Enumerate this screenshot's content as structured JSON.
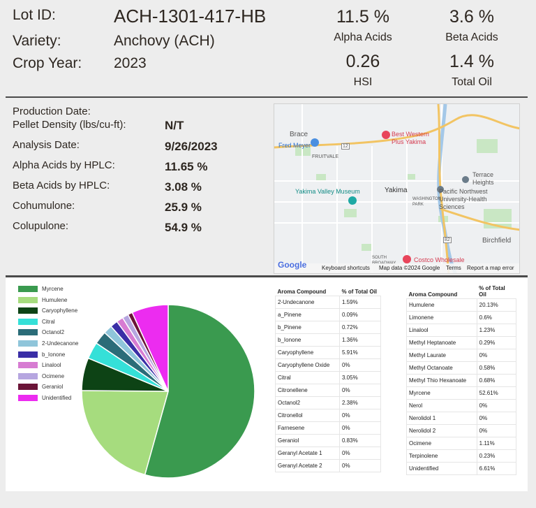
{
  "header": {
    "lot_label": "Lot ID:",
    "lot_value": "ACH-1301-417-HB",
    "variety_label": "Variety:",
    "variety_value": "Anchovy (ACH)",
    "crop_label": "Crop Year:",
    "crop_value": "2023",
    "alpha_value": "11.5 %",
    "alpha_label": "Alpha Acids",
    "beta_value": "3.6 %",
    "beta_label": "Beta Acids",
    "hsi_value": "0.26",
    "hsi_label": "HSI",
    "oil_value": "1.4 %",
    "oil_label": "Total Oil"
  },
  "production": {
    "production_date_label": "Production Date:",
    "pellet_density_label": "Pellet Density (lbs/cu-ft):",
    "pellet_density_value": "N/T",
    "analysis_date_label": "Analysis Date:",
    "analysis_date_value": "9/26/2023",
    "alpha_hplc_label": "Alpha Acids by HPLC:",
    "alpha_hplc_value": "11.65 %",
    "beta_hplc_label": "Beta Acids by HPLC:",
    "beta_hplc_value": "3.08 %",
    "cohumulone_label": "Cohumulone:",
    "cohumulone_value": "25.9 %",
    "colupulone_label": "Colupulone:",
    "colupulone_value": "54.9 %"
  },
  "map": {
    "labels": {
      "brace": "Brace",
      "fred_meyer": "Fred Meyer",
      "fruitvale": "FRUITVALE",
      "best_western": "Best Western Plus Yakima",
      "terrace": "Terrace Heights",
      "museum": "Yakima Valley Museum",
      "yakima": "Yakima",
      "washington_park": "WASHINGTON PARK",
      "pnwu": "Pacific Northwest University-Health Sciences",
      "birchfield": "Birchfield",
      "south_broadway": "SOUTH BROADWAY",
      "costco": "Costco Wholesale",
      "route_12": "12",
      "route_82": "82"
    },
    "google": "Google",
    "shortcuts": "Keyboard shortcuts",
    "mapdata": "Map data ©2024 Google",
    "terms": "Terms",
    "report": "Report a map error"
  },
  "chart_data": {
    "type": "pie",
    "title": "",
    "series": [
      {
        "name": "Myrcene",
        "value": 52.61,
        "color": "#3a9a4f"
      },
      {
        "name": "Humulene",
        "value": 20.13,
        "color": "#a6dc7e"
      },
      {
        "name": "Caryophyllene",
        "value": 5.91,
        "color": "#0d4315"
      },
      {
        "name": "Citral",
        "value": 3.05,
        "color": "#35e0d8"
      },
      {
        "name": "Octanol2",
        "value": 2.38,
        "color": "#2b6c78"
      },
      {
        "name": "2-Undecanone",
        "value": 1.59,
        "color": "#8fc5da"
      },
      {
        "name": "b_Ionone",
        "value": 1.36,
        "color": "#3a2ea6"
      },
      {
        "name": "Linalool",
        "value": 1.23,
        "color": "#d77cd2"
      },
      {
        "name": "Ocimene",
        "value": 1.11,
        "color": "#b6a6e0"
      },
      {
        "name": "Geraniol",
        "value": 0.83,
        "color": "#6b1538"
      },
      {
        "name": "Unidentified",
        "value": 6.61,
        "color": "#ec2cf0"
      }
    ]
  },
  "aroma_table_1": {
    "headers": [
      "Aroma Compound",
      "% of Total Oil"
    ],
    "rows": [
      [
        "2-Undecanone",
        "1.59%"
      ],
      [
        "a_Pinene",
        "0.09%"
      ],
      [
        "b_Pinene",
        "0.72%"
      ],
      [
        "b_Ionone",
        "1.36%"
      ],
      [
        "Caryophyllene",
        "5.91%"
      ],
      [
        "Caryophyllene Oxide",
        "0%"
      ],
      [
        "Citral",
        "3.05%"
      ],
      [
        "Citronellene",
        "0%"
      ],
      [
        "Octanol2",
        "2.38%"
      ],
      [
        "Citronellol",
        "0%"
      ],
      [
        "Farnesene",
        "0%"
      ],
      [
        "Geraniol",
        "0.83%"
      ],
      [
        "Geranyl Acetate 1",
        "0%"
      ],
      [
        "Geranyl Acetate 2",
        "0%"
      ]
    ]
  },
  "aroma_table_2": {
    "headers": [
      "Aroma Compound",
      "% of Total Oil"
    ],
    "rows": [
      [
        "Humulene",
        "20.13%"
      ],
      [
        "Limonene",
        "0.6%"
      ],
      [
        "Linalool",
        "1.23%"
      ],
      [
        "Methyl Heptanoate",
        "0.29%"
      ],
      [
        "Methyl Laurate",
        "0%"
      ],
      [
        "Methyl Octanoate",
        "0.58%"
      ],
      [
        "Methyl Thio Hexanoate",
        "0.68%"
      ],
      [
        "Myrcene",
        "52.61%"
      ],
      [
        "Nerol",
        "0%"
      ],
      [
        "Nerolidol 1",
        "0%"
      ],
      [
        "Nerolidol 2",
        "0%"
      ],
      [
        "Ocimene",
        "1.11%"
      ],
      [
        "Terpinolene",
        "0.23%"
      ],
      [
        "Unidentified",
        "6.61%"
      ]
    ]
  }
}
